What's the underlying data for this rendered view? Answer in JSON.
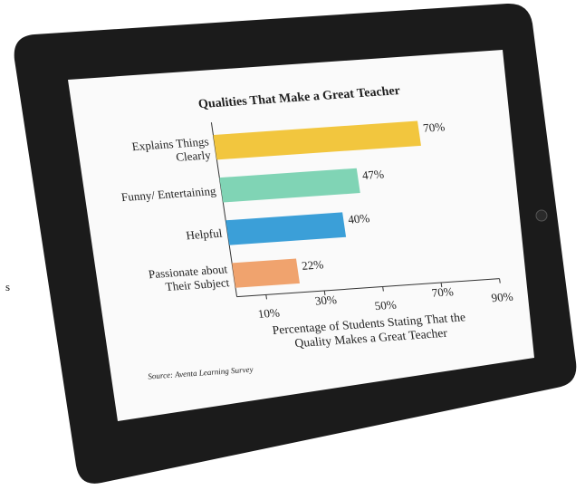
{
  "margin_text": "s",
  "chart_data": {
    "type": "barh",
    "title": "Qualities That Make a Great Teacher",
    "categories": [
      "Explains Things Clearly",
      "Funny/ Entertaining",
      "Helpful",
      "Passionate about Their Subject"
    ],
    "values": [
      70,
      47,
      40,
      22
    ],
    "value_labels": [
      "70%",
      "47%",
      "40%",
      "22%"
    ],
    "colors": [
      "#f2c63e",
      "#80d4b5",
      "#3b9fd8",
      "#f0a36e"
    ],
    "xlim": [
      0,
      90
    ],
    "xticks": [
      {
        "value": 10,
        "label": "10%"
      },
      {
        "value": 30,
        "label": "30%"
      },
      {
        "value": 50,
        "label": "50%"
      },
      {
        "value": 70,
        "label": "70%"
      },
      {
        "value": 90,
        "label": "90%"
      }
    ],
    "xlabel": "Percentage of Students Stating That the Quality Makes a Great Teacher",
    "source": "Source: Aventa Learning Survey"
  }
}
